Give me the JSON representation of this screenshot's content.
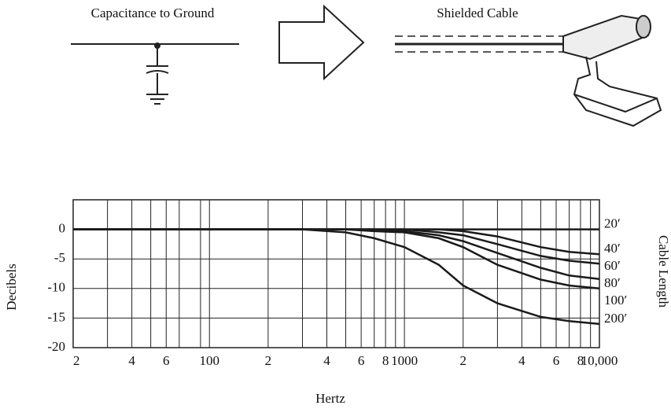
{
  "diagram": {
    "left_label": "Capacitance to Ground",
    "right_label": "Shielded Cable"
  },
  "chart_data": {
    "type": "line",
    "xlabel": "Hertz",
    "ylabel": "Decibels",
    "y2label": "Cable Length",
    "log_x": true,
    "grid": true,
    "x": [
      20,
      100,
      300,
      500,
      700,
      1000,
      1500,
      2000,
      3000,
      5000,
      7000,
      10000
    ],
    "series": [
      {
        "name": "20′",
        "color": "#1a1a1a",
        "values": [
          0,
          0,
          0,
          0,
          0,
          0,
          0,
          0,
          0,
          0,
          0,
          0
        ]
      },
      {
        "name": "40′",
        "color": "#1a1a1a",
        "values": [
          0,
          0,
          0,
          0,
          0,
          0,
          0,
          -0.3,
          -1.2,
          -3,
          -3.8,
          -4.2
        ]
      },
      {
        "name": "60′",
        "color": "#1a1a1a",
        "values": [
          0,
          0,
          0,
          0,
          0,
          0,
          -0.5,
          -1,
          -2.5,
          -4.5,
          -5.3,
          -5.8
        ]
      },
      {
        "name": "80′",
        "color": "#1a1a1a",
        "values": [
          0,
          0,
          0,
          0,
          0,
          -0.3,
          -1,
          -2,
          -4,
          -6.5,
          -7.8,
          -8.4
        ]
      },
      {
        "name": "100′",
        "color": "#1a1a1a",
        "values": [
          0,
          0,
          0,
          0,
          -0.3,
          -0.5,
          -1.5,
          -3,
          -6,
          -8.5,
          -9.5,
          -10
        ]
      },
      {
        "name": "200′",
        "color": "#1a1a1a",
        "values": [
          0,
          0,
          0,
          -0.5,
          -1.5,
          -3,
          -6,
          -9.5,
          -12.5,
          -14.8,
          -15.5,
          -16
        ]
      }
    ],
    "xlim": [
      20,
      10000
    ],
    "ylim": [
      -20,
      5
    ],
    "xticks": [
      {
        "value": 20,
        "label": "2"
      },
      {
        "value": 40,
        "label": "4"
      },
      {
        "value": 60,
        "label": "6"
      },
      100,
      {
        "value": 200,
        "label": "2"
      },
      {
        "value": 400,
        "label": "4"
      },
      {
        "value": 600,
        "label": "6"
      },
      {
        "value": 800,
        "label": "8"
      },
      1000,
      {
        "value": 2000,
        "label": "2"
      },
      {
        "value": 4000,
        "label": "4"
      },
      {
        "value": 6000,
        "label": "6"
      },
      {
        "value": 8000,
        "label": "8"
      },
      {
        "value": 10000,
        "label": "10,000"
      }
    ],
    "xgrid": [
      30,
      50,
      70,
      90,
      300,
      500,
      700,
      900,
      3000,
      5000,
      7000,
      9000
    ],
    "yticks": [
      0,
      -5,
      -10,
      -15,
      -20
    ]
  }
}
